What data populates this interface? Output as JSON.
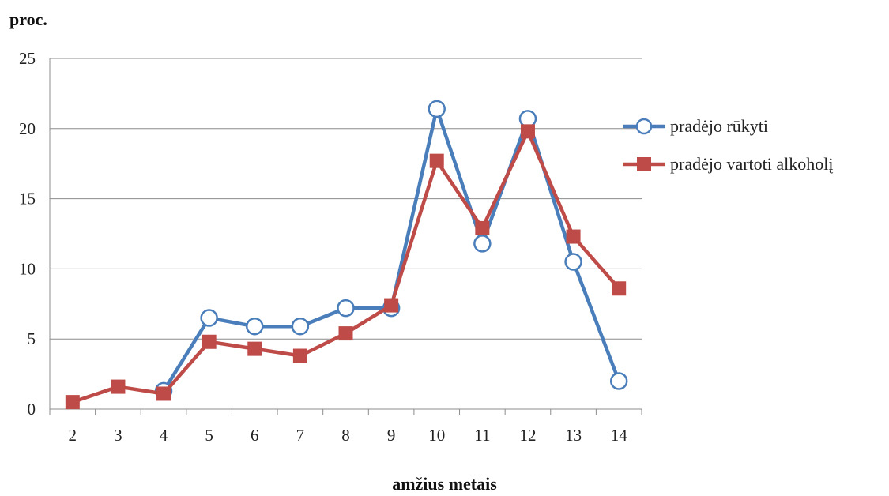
{
  "chart_data": {
    "type": "line",
    "ylabel": "proc.",
    "xlabel": "amžius metais",
    "categories": [
      "2",
      "3",
      "4",
      "5",
      "6",
      "7",
      "8",
      "9",
      "10",
      "11",
      "12",
      "13",
      "14"
    ],
    "ylim": [
      0,
      25
    ],
    "yticks": [
      0,
      5,
      10,
      15,
      20,
      25
    ],
    "grid": true,
    "legend_position": "right",
    "series": [
      {
        "name": "pradėjo rūkyti",
        "color": "#4a7ebb",
        "marker": "circle-open",
        "values": [
          null,
          null,
          1.3,
          6.5,
          5.9,
          5.9,
          7.2,
          7.2,
          21.4,
          11.8,
          20.7,
          10.5,
          2.0
        ]
      },
      {
        "name": "pradėjo vartoti alkoholį",
        "color": "#be4b48",
        "marker": "square",
        "values": [
          0.5,
          1.6,
          1.1,
          4.8,
          4.3,
          3.8,
          5.4,
          7.4,
          17.7,
          12.9,
          19.8,
          12.3,
          8.6
        ]
      }
    ]
  }
}
